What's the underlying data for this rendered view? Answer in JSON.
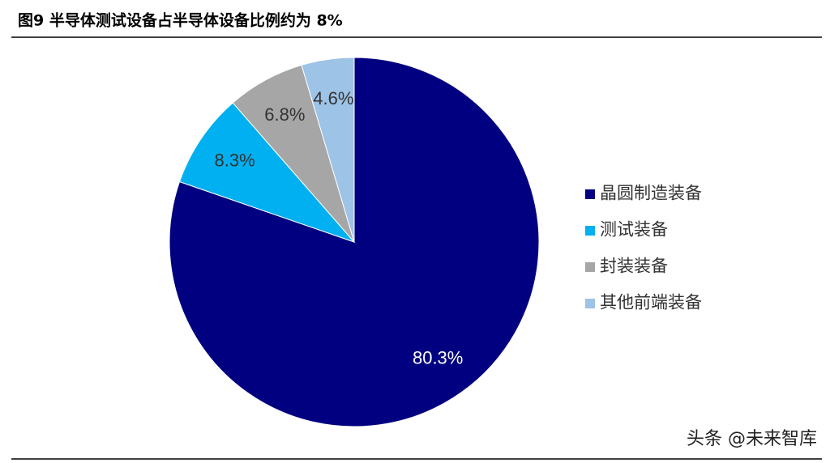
{
  "chart_data": {
    "type": "pie",
    "title": "图9  半导体测试设备占半导体设备比例约为 8%",
    "categories": [
      "晶圆制造装备",
      "测试装备",
      "封装装备",
      "其他前端装备"
    ],
    "values": [
      80.3,
      8.3,
      6.8,
      4.6
    ],
    "value_labels": [
      "80.3%",
      "8.3%",
      "6.8%",
      "4.6%"
    ],
    "colors": [
      "#000080",
      "#00b0f0",
      "#a6a6a6",
      "#9dc3e6"
    ],
    "legend": "right",
    "watermark": "头条 @未来智库"
  }
}
